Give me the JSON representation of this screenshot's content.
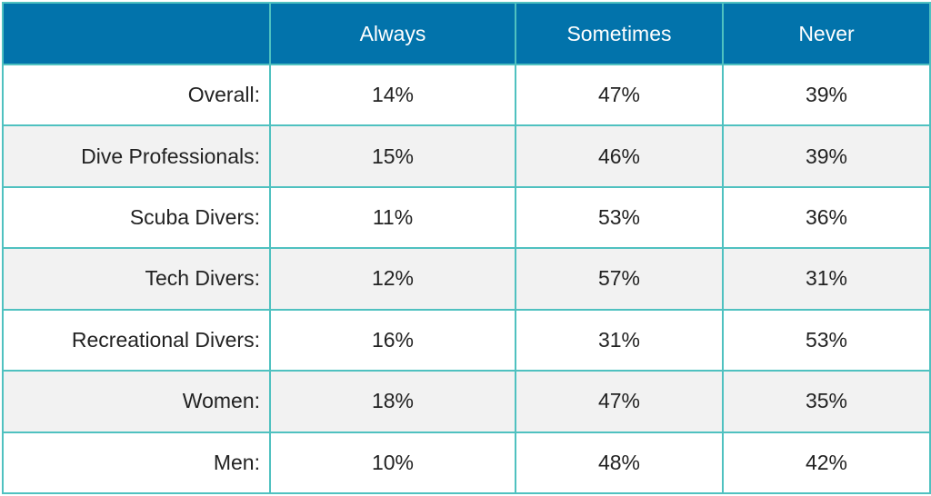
{
  "chart_data": {
    "type": "table",
    "columns": [
      "",
      "Always",
      "Sometimes",
      "Never"
    ],
    "rows": [
      {
        "label": "Overall:",
        "values": [
          "14%",
          "47%",
          "39%"
        ]
      },
      {
        "label": "Dive Professionals:",
        "values": [
          "15%",
          "46%",
          "39%"
        ]
      },
      {
        "label": "Scuba Divers:",
        "values": [
          "11%",
          "53%",
          "36%"
        ]
      },
      {
        "label": "Tech Divers:",
        "values": [
          "12%",
          "57%",
          "31%"
        ]
      },
      {
        "label": "Recreational Divers:",
        "values": [
          "16%",
          "31%",
          "53%"
        ]
      },
      {
        "label": "Women:",
        "values": [
          "18%",
          "47%",
          "35%"
        ]
      },
      {
        "label": "Men:",
        "values": [
          "10%",
          "48%",
          "42%"
        ]
      }
    ]
  },
  "colors": {
    "header_bg": "#0273ab",
    "header_text": "#ffffff",
    "border": "#4fc1c0",
    "row_alt_bg": "#f2f2f2",
    "row_bg": "#ffffff",
    "text": "#222222"
  }
}
